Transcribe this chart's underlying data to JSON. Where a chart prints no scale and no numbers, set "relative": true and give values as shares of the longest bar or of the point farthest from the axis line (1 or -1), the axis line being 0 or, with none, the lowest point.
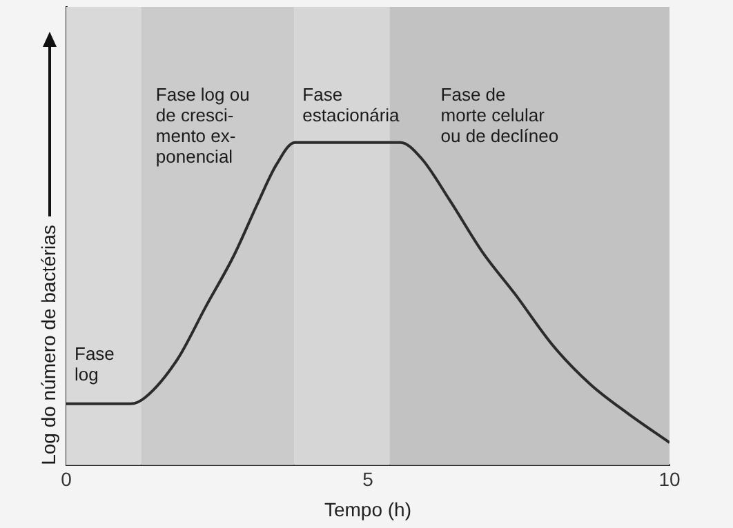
{
  "chart_data": {
    "type": "line",
    "relative": true,
    "xlabel": "Tempo (h)",
    "ylabel": "Log do número de bactérias",
    "xlim": [
      0,
      10
    ],
    "xticks": [
      0,
      5,
      10
    ],
    "line_style": "solid",
    "x": [
      0,
      1.07,
      1.31,
      1.85,
      2.31,
      2.78,
      3.17,
      3.48,
      3.79,
      5.54,
      5.89,
      6.36,
      6.9,
      7.44,
      8.07,
      8.69,
      9.31,
      10
    ],
    "series": [
      {
        "color": "#2b2b2b",
        "values": [
          0.19,
          0.19,
          0.21,
          0.33,
          0.49,
          0.65,
          0.81,
          0.93,
          1,
          1,
          0.95,
          0.82,
          0.66,
          0.53,
          0.37,
          0.25,
          0.16,
          0.07
        ]
      }
    ],
    "bands": [
      {
        "axis": "x",
        "from": 0,
        "to": 1.24,
        "label": "Fase\nlog",
        "color": "#d9d9d9"
      },
      {
        "axis": "x",
        "from": 1.24,
        "to": 3.78,
        "label": "Fase log ou\nde cresci-\nmento ex-\nponencial",
        "color": "#cbcbcb"
      },
      {
        "axis": "x",
        "from": 3.78,
        "to": 5.36,
        "label": "Fase\nestacionária",
        "color": "#d6d6d6"
      },
      {
        "axis": "x",
        "from": 5.36,
        "to": 10,
        "label": "Fase de\nmorte celular\nou de declíneo",
        "color": "#c2c2c2"
      }
    ]
  }
}
